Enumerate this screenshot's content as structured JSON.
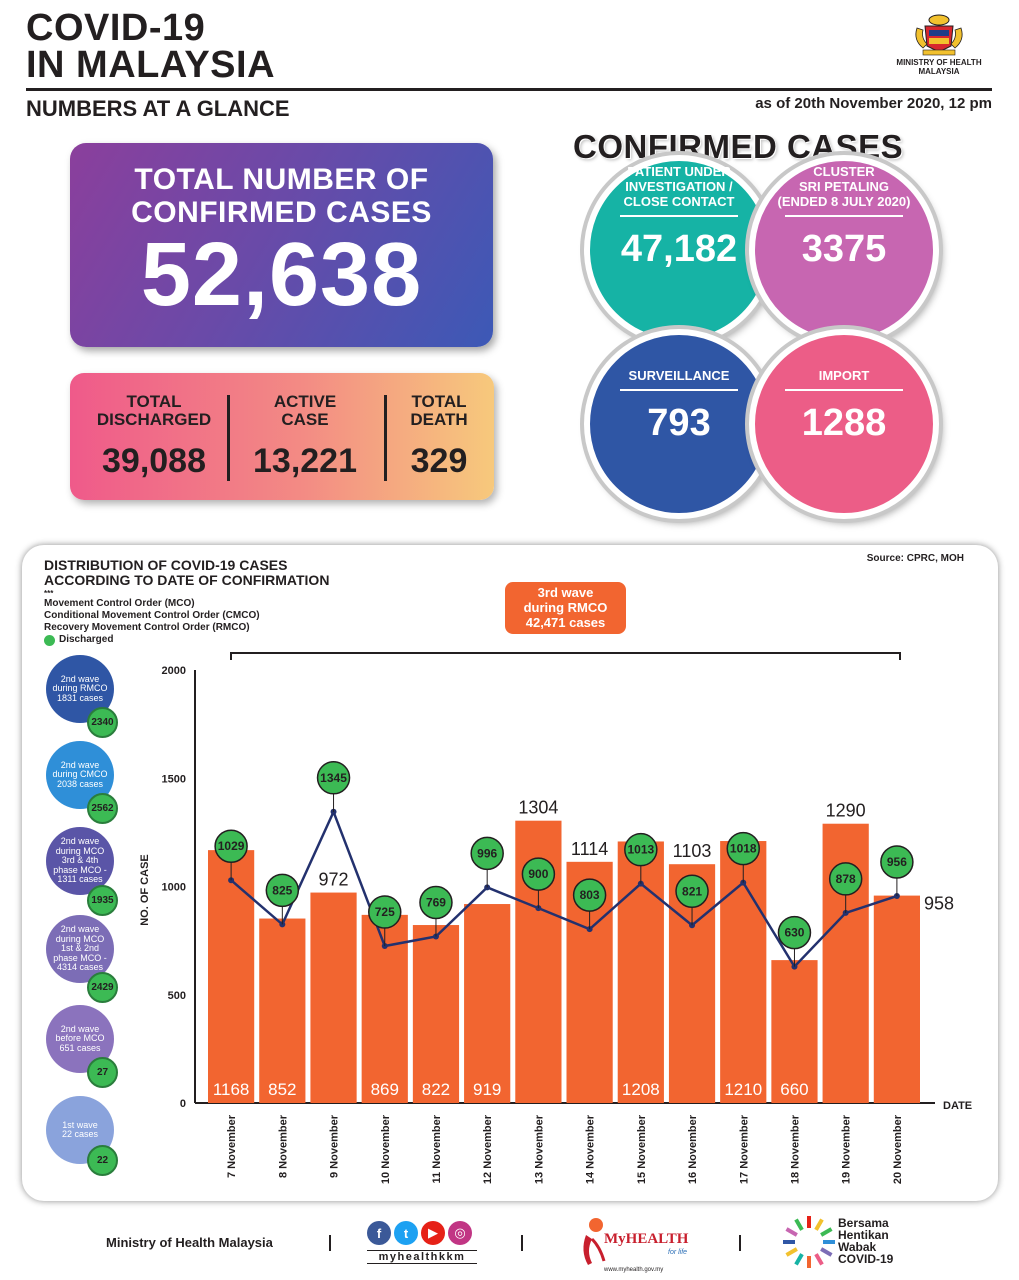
{
  "header": {
    "title": "COVID-19\nIN MALAYSIA",
    "subtitle": "NUMBERS AT A GLANCE",
    "date": "as of 20th November 2020, 12 pm",
    "ministry_logo_text": "MINISTRY OF HEALTH\nMALAYSIA"
  },
  "total": {
    "label": "TOTAL NUMBER OF\nCONFIRMED CASES",
    "value": "52,638"
  },
  "summary": [
    {
      "label": "TOTAL\nDISCHARGED",
      "value": "39,088"
    },
    {
      "label": "ACTIVE\nCASE",
      "value": "13,221"
    },
    {
      "label": "TOTAL\nDEATH",
      "value": "329"
    }
  ],
  "confirmed": {
    "title": "CONFIRMED CASES",
    "items": [
      {
        "label": "PATIENT UNDER\nINVESTIGATION /\nCLOSE CONTACT",
        "value": "47,182",
        "color": "#16b3a5"
      },
      {
        "label": "CLUSTER\nSRI PETALING\n(ENDED 8 JULY 2020)",
        "value": "3375",
        "color": "#c766b1"
      },
      {
        "label": "SURVEILLANCE",
        "value": "793",
        "color": "#2f56a5"
      },
      {
        "label": "IMPORT",
        "value": "1288",
        "color": "#ec5d87"
      }
    ]
  },
  "chart_panel": {
    "title": "DISTRIBUTION OF COVID-19 CASES\nACCORDING TO DATE OF CONFIRMATION",
    "source": "Source: CPRC, MOH",
    "legend_marker": "***",
    "legend": [
      "Movement Control Order (MCO)",
      "Conditional Movement Control Order (CMCO)",
      "Recovery Movement Control Order (RMCO)"
    ],
    "legend_discharged": "Discharged",
    "wave_note": "3rd wave\nduring RMCO\n42,471 cases",
    "waves": [
      {
        "label": "2nd wave\nduring RMCO\n1831 cases",
        "discharged": "2340",
        "color": "#2f56a5"
      },
      {
        "label": "2nd wave\nduring CMCO\n2038 cases",
        "discharged": "2562",
        "color": "#2f8fd8"
      },
      {
        "label": "2nd wave\nduring MCO\n3rd & 4th\nphase MCO -\n1311 cases",
        "discharged": "1935",
        "color": "#5a55a7"
      },
      {
        "label": "2nd wave\nduring MCO\n1st & 2nd\nphase MCO -\n4314 cases",
        "discharged": "2429",
        "color": "#7c6db6"
      },
      {
        "label": "2nd wave\nbefore MCO\n651 cases",
        "discharged": "27",
        "color": "#8b73bd"
      },
      {
        "label": "1st wave\n22 cases",
        "discharged": "22",
        "color": "#8aa3dc"
      }
    ]
  },
  "chart_data": {
    "type": "bar",
    "xlabel": "DATE",
    "ylabel": "NO. OF CASE",
    "ylim": [
      0,
      2000
    ],
    "yticks": [
      "0",
      "500",
      "1000",
      "1500",
      "2000"
    ],
    "categories": [
      "7 November",
      "8 November",
      "9 November",
      "10 November",
      "11 November",
      "12 November",
      "13 November",
      "14 November",
      "15 November",
      "16 November",
      "17 November",
      "18 November",
      "19 November",
      "20 November"
    ],
    "series": [
      {
        "name": "",
        "type": "bar",
        "values": [
          1168,
          852,
          972,
          869,
          822,
          919,
          1304,
          1114,
          1208,
          1103,
          1210,
          660,
          1290,
          958
        ]
      },
      {
        "name": "Discharged",
        "type": "line",
        "values": [
          1029,
          825,
          1345,
          725,
          769,
          996,
          900,
          803,
          1013,
          821,
          1018,
          630,
          878,
          956
        ]
      }
    ],
    "bar_label_position": [
      "inside",
      "inside",
      "top",
      "inside",
      "inside",
      "inside",
      "top",
      "top",
      "inside",
      "top",
      "inside",
      "inside",
      "top",
      "side"
    ],
    "colors": {
      "bar": "#f26530",
      "line": "#23316e",
      "marker": "#3cba54"
    }
  },
  "footer": {
    "ministry": "Ministry of Health Malaysia",
    "social_handle": "myhealthkkm",
    "myhealth": "MyHEALTH",
    "myhealth_tag": "for life",
    "myhealth_url": "www.myhealth.gov.my",
    "campaign": "Bersama\nHentikan\nWabak\nCOVID-19"
  }
}
